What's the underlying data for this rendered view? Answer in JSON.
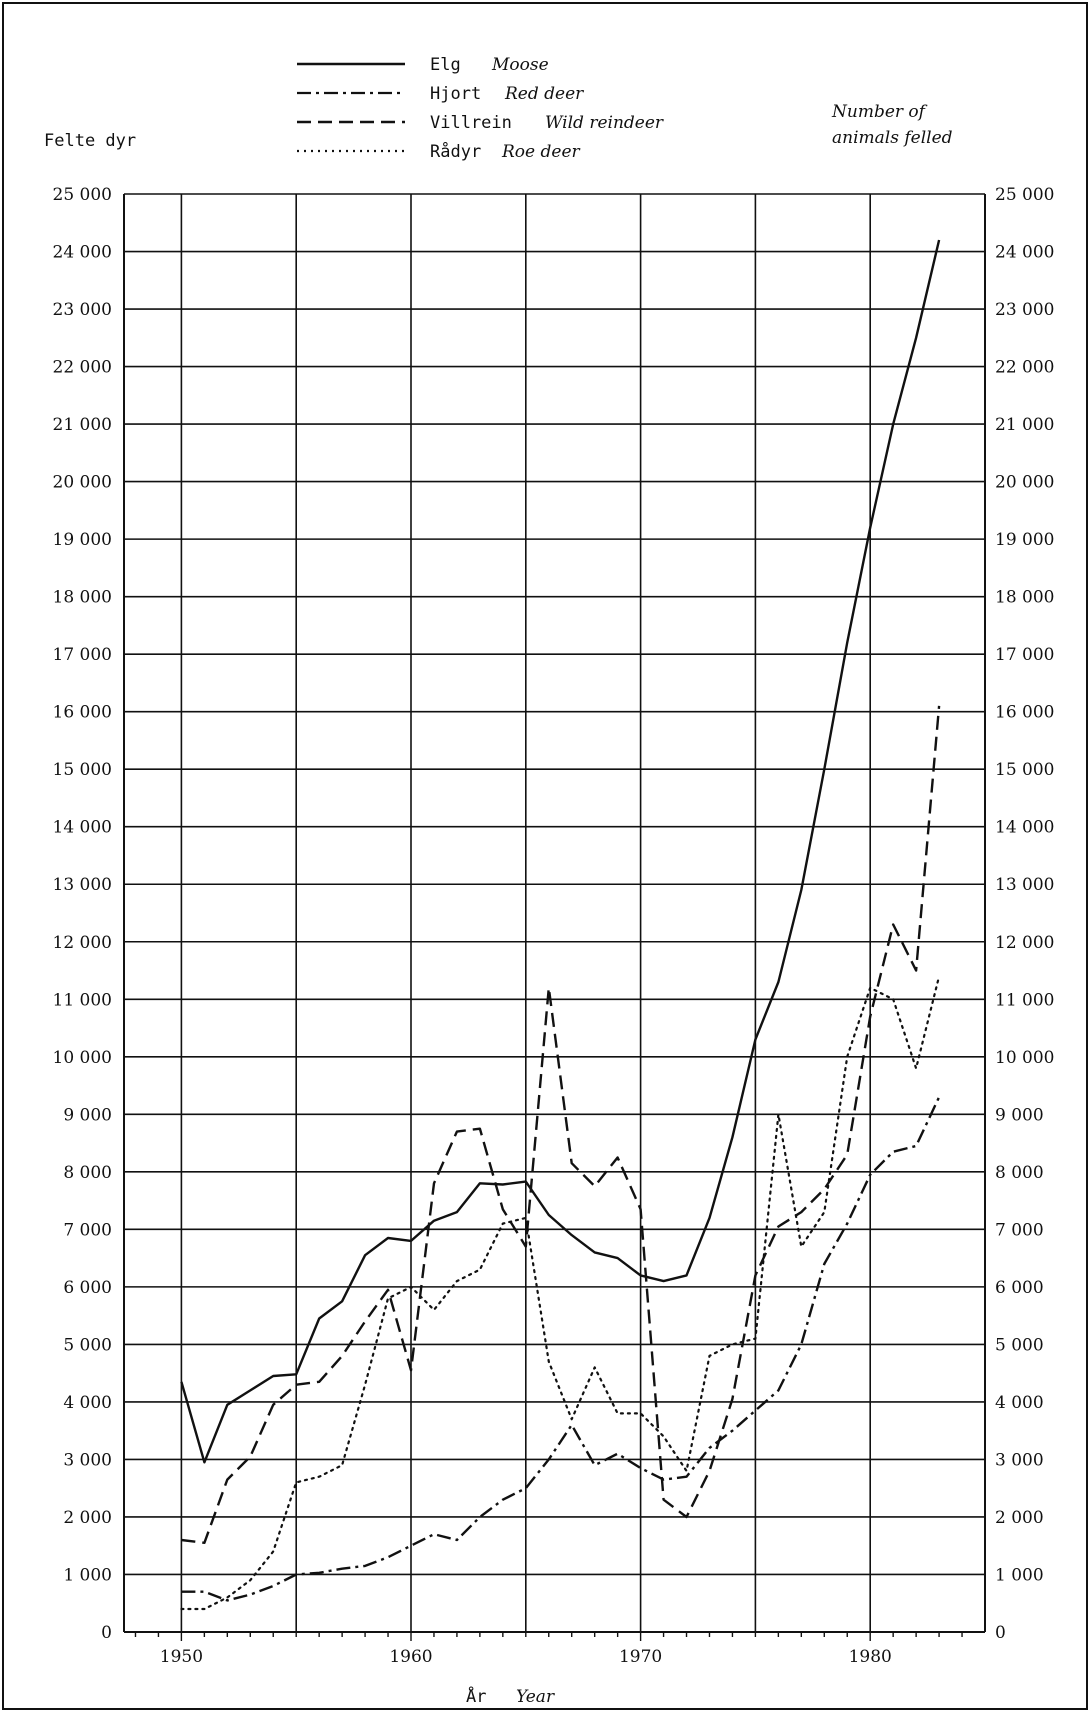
{
  "chart_data": {
    "type": "line",
    "ylabel": "Felte dyr",
    "ylabel_en": "Number of animals felled",
    "xlabel": "År",
    "xlabel_en": "Year",
    "xlim": [
      1947.5,
      1985
    ],
    "ylim": [
      0,
      25000
    ],
    "grid": true,
    "legend_placement": "top-center",
    "x_ticks": [
      1950,
      1960,
      1970,
      1980
    ],
    "y_ticks": [
      0,
      1000,
      2000,
      3000,
      4000,
      5000,
      6000,
      7000,
      8000,
      9000,
      10000,
      11000,
      12000,
      13000,
      14000,
      15000,
      16000,
      17000,
      18000,
      19000,
      20000,
      21000,
      22000,
      23000,
      24000,
      25000
    ],
    "y_tick_labels": [
      "0",
      "1 000",
      "2 000",
      "3 000",
      "4 000",
      "5 000",
      "6 000",
      "7 000",
      "8 000",
      "9 000",
      "10 000",
      "11 000",
      "12 000",
      "13 000",
      "14 000",
      "15 000",
      "16 000",
      "17 000",
      "18 000",
      "19 000",
      "20 000",
      "21 000",
      "22 000",
      "23 000",
      "24 000",
      "25 000"
    ],
    "x": [
      1950,
      1951,
      1952,
      1953,
      1954,
      1955,
      1956,
      1957,
      1958,
      1959,
      1960,
      1961,
      1962,
      1963,
      1964,
      1965,
      1966,
      1967,
      1968,
      1969,
      1970,
      1971,
      1972,
      1973,
      1974,
      1975,
      1976,
      1977,
      1978,
      1979,
      1980,
      1981,
      1982,
      1983
    ],
    "series": [
      {
        "name": "Elg",
        "name_en": "Moose",
        "style": "solid",
        "values": [
          4350,
          2950,
          3950,
          4200,
          4450,
          4480,
          5450,
          5750,
          6550,
          6850,
          6800,
          7150,
          7300,
          7800,
          7780,
          7830,
          7250,
          6900,
          6600,
          6500,
          6200,
          6100,
          6200,
          7200,
          8600,
          10300,
          11300,
          12900,
          15000,
          17200,
          19200,
          21000,
          22500,
          24200
        ]
      },
      {
        "name": "Hjort",
        "name_en": "Red deer",
        "style": "dashdot",
        "values": [
          700,
          700,
          550,
          650,
          800,
          1000,
          1030,
          1100,
          1150,
          1300,
          1500,
          1700,
          1600,
          2000,
          2300,
          2500,
          3000,
          3600,
          2900,
          3100,
          2850,
          2650,
          2700,
          3200,
          3500,
          3850,
          4200,
          5000,
          6400,
          7100,
          7950,
          8350,
          8450,
          9300
        ]
      },
      {
        "name": "Villrein",
        "name_en": "Wild reindeer",
        "style": "dashed",
        "values": [
          1600,
          1550,
          2650,
          3050,
          3950,
          4300,
          4350,
          4800,
          5400,
          5950,
          4550,
          7800,
          8700,
          8750,
          7350,
          6700,
          11200,
          8150,
          7750,
          8250,
          7350,
          2300,
          2000,
          2800,
          4050,
          6200,
          7050,
          7300,
          7700,
          8300,
          10700,
          12300,
          11500,
          16100
        ]
      },
      {
        "name": "Rådyr",
        "name_en": "Roe deer",
        "style": "dotted",
        "values": [
          400,
          400,
          600,
          900,
          1400,
          2600,
          2700,
          2900,
          4300,
          5800,
          6000,
          5600,
          6100,
          6300,
          7100,
          7200,
          4700,
          3700,
          4600,
          3800,
          3800,
          3400,
          2800,
          4800,
          5000,
          5100,
          9000,
          6700,
          7300,
          10000,
          11200,
          11000,
          9800,
          11400
        ]
      }
    ]
  }
}
